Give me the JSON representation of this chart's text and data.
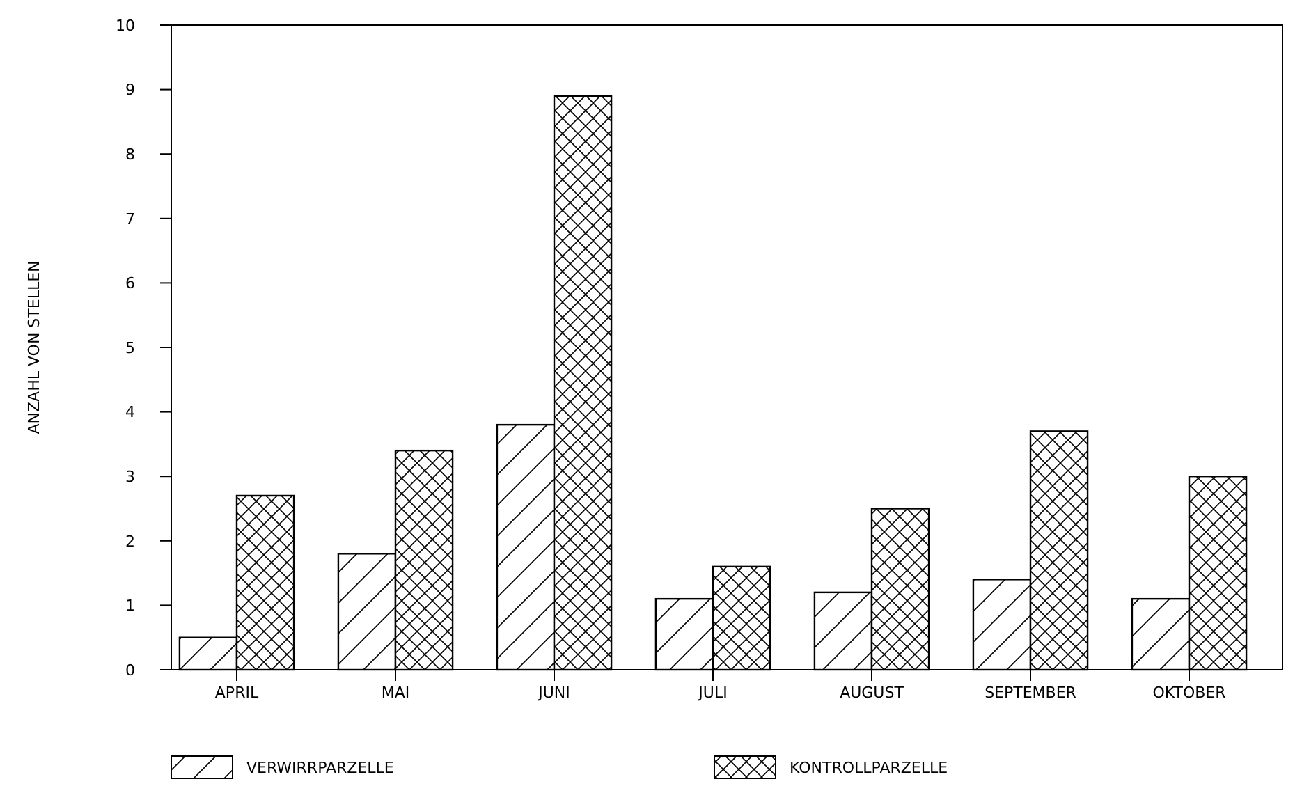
{
  "chart_data": {
    "type": "bar",
    "ylabel": "ANZAHL VON STELLEN",
    "categories": [
      "APRIL",
      "MAI",
      "JUNI",
      "JULI",
      "AUGUST",
      "SEPTEMBER",
      "OKTOBER"
    ],
    "series": [
      {
        "name": "VERWIRRPARZELLE",
        "color": "#000000",
        "values": [
          0.5,
          1.8,
          3.8,
          1.1,
          1.2,
          1.4,
          1.1
        ]
      },
      {
        "name": "KONTROLLPARZELLE",
        "color": "#000000",
        "values": [
          2.7,
          3.4,
          8.9,
          1.6,
          2.5,
          3.7,
          3.0
        ]
      }
    ],
    "ylim": [
      0,
      10
    ],
    "yticks": [
      0,
      1,
      2,
      3,
      4,
      5,
      6,
      7,
      8,
      9,
      10
    ],
    "grid": false,
    "legend": "bottom"
  }
}
